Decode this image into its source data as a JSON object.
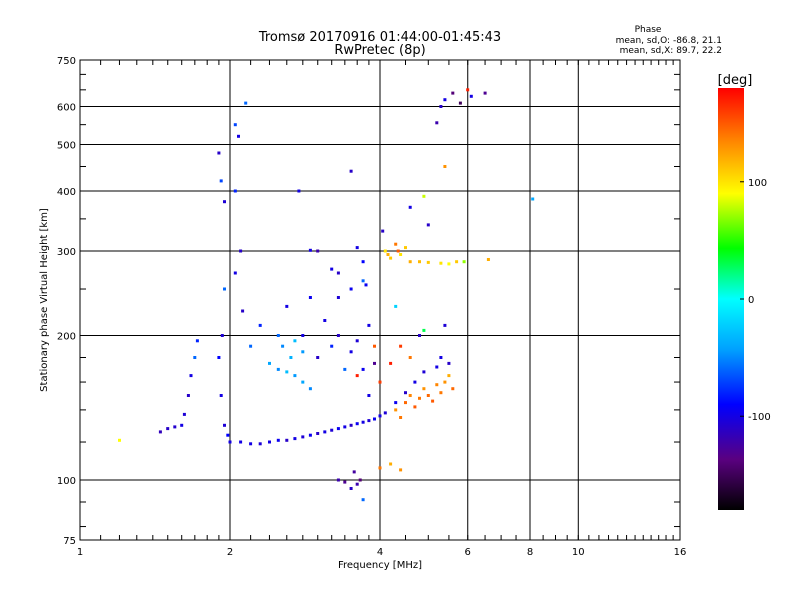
{
  "chart_data": {
    "type": "scatter",
    "title": "Tromsø 20170916 01:44:00-01:45:43",
    "subtitle": "RwPretec (8p)",
    "xlabel": "Frequency [MHz]",
    "ylabel": "Stationary phase Virtual Height [km]",
    "x_scale": "log2",
    "y_scale": "log",
    "xlim": [
      1,
      16
    ],
    "ylim": [
      75,
      750
    ],
    "x_ticks": [
      1,
      2,
      4,
      6,
      8,
      10,
      16
    ],
    "y_ticks": [
      75,
      100,
      200,
      300,
      400,
      500,
      600,
      750
    ],
    "grid": true,
    "phase_info": {
      "title": "Phase",
      "line_o": "mean, sd,O: -86.8, 21.1",
      "line_x": "mean, sd,X:  89.7, 22.2"
    },
    "colorbar": {
      "label": "[deg]",
      "range": [
        -180,
        180
      ],
      "ticks": [
        100,
        0,
        -100
      ]
    },
    "series": [
      {
        "values": [
          [
            1.2,
            121,
            90
          ],
          [
            1.45,
            126,
            -115
          ],
          [
            1.5,
            128,
            -110
          ],
          [
            1.55,
            129,
            -108
          ],
          [
            1.6,
            130,
            -100
          ],
          [
            1.62,
            137,
            -105
          ],
          [
            1.65,
            150,
            -110
          ],
          [
            1.67,
            165,
            -100
          ],
          [
            1.7,
            180,
            -60
          ],
          [
            1.72,
            195,
            -80
          ],
          [
            1.9,
            480,
            -110
          ],
          [
            1.92,
            420,
            -70
          ],
          [
            1.95,
            380,
            -105
          ],
          [
            1.95,
            250,
            -60
          ],
          [
            1.93,
            200,
            -105
          ],
          [
            1.9,
            180,
            -90
          ],
          [
            1.92,
            150,
            -100
          ],
          [
            1.95,
            130,
            -105
          ],
          [
            1.98,
            124,
            -90
          ],
          [
            2.0,
            120,
            -100
          ],
          [
            2.05,
            550,
            -70
          ],
          [
            2.08,
            520,
            -100
          ],
          [
            2.15,
            610,
            -60
          ],
          [
            2.05,
            400,
            -80
          ],
          [
            2.1,
            300,
            -110
          ],
          [
            2.05,
            270,
            -100
          ],
          [
            2.12,
            225,
            -110
          ],
          [
            2.2,
            190,
            -60
          ],
          [
            2.1,
            120,
            -100
          ],
          [
            2.2,
            119,
            -100
          ],
          [
            2.3,
            119,
            -105
          ],
          [
            2.4,
            120,
            -100
          ],
          [
            2.5,
            121,
            -95
          ],
          [
            2.6,
            121,
            -110
          ],
          [
            2.7,
            122,
            -100
          ],
          [
            2.8,
            123,
            -105
          ],
          [
            2.9,
            124,
            -95
          ],
          [
            3.0,
            125,
            -110
          ],
          [
            3.1,
            126,
            -100
          ],
          [
            3.2,
            127,
            -105
          ],
          [
            3.3,
            128,
            -95
          ],
          [
            3.4,
            129,
            -100
          ],
          [
            3.5,
            130,
            -110
          ],
          [
            3.6,
            131,
            -95
          ],
          [
            3.7,
            132,
            -100
          ],
          [
            3.8,
            133,
            -105
          ],
          [
            3.9,
            134,
            -95
          ],
          [
            4.0,
            136,
            -100
          ],
          [
            4.1,
            138,
            -105
          ],
          [
            4.3,
            145,
            -95
          ],
          [
            4.5,
            152,
            -110
          ],
          [
            4.7,
            160,
            -100
          ],
          [
            4.9,
            168,
            -105
          ],
          [
            5.2,
            172,
            -100
          ],
          [
            5.5,
            175,
            -110
          ],
          [
            2.4,
            175,
            -40
          ],
          [
            2.5,
            170,
            -50
          ],
          [
            2.6,
            168,
            -30
          ],
          [
            2.7,
            165,
            -45
          ],
          [
            2.8,
            160,
            -40
          ],
          [
            2.9,
            155,
            -50
          ],
          [
            2.65,
            180,
            -35
          ],
          [
            2.55,
            190,
            -50
          ],
          [
            2.7,
            195,
            -30
          ],
          [
            2.8,
            185,
            -45
          ],
          [
            2.5,
            200,
            -60
          ],
          [
            2.3,
            210,
            -80
          ],
          [
            2.6,
            230,
            -100
          ],
          [
            2.9,
            240,
            -95
          ],
          [
            3.1,
            215,
            -100
          ],
          [
            3.3,
            200,
            -110
          ],
          [
            3.5,
            185,
            -100
          ],
          [
            3.7,
            170,
            -95
          ],
          [
            3.4,
            170,
            -60
          ],
          [
            3.6,
            195,
            -105
          ],
          [
            3.8,
            210,
            -100
          ],
          [
            3.2,
            190,
            -80
          ],
          [
            3.0,
            180,
            -110
          ],
          [
            2.8,
            200,
            -100
          ],
          [
            3.3,
            240,
            -105
          ],
          [
            3.5,
            250,
            -95
          ],
          [
            3.2,
            275,
            -100
          ],
          [
            3.3,
            270,
            -110
          ],
          [
            3.6,
            305,
            -100
          ],
          [
            3.75,
            255,
            -95
          ],
          [
            3.5,
            440,
            -110
          ],
          [
            3.7,
            260,
            -60
          ],
          [
            3.7,
            285,
            -90
          ],
          [
            3.0,
            300,
            -120
          ],
          [
            2.9,
            301,
            -100
          ],
          [
            2.75,
            400,
            -100
          ],
          [
            3.3,
            100,
            -120
          ],
          [
            3.4,
            99,
            -130
          ],
          [
            3.5,
            96,
            -110
          ],
          [
            3.6,
            98,
            -120
          ],
          [
            3.7,
            91,
            -60
          ],
          [
            3.55,
            104,
            -125
          ],
          [
            3.65,
            100,
            -140
          ],
          [
            4.0,
            106,
            140
          ],
          [
            4.2,
            108,
            120
          ],
          [
            4.4,
            105,
            130
          ],
          [
            4.05,
            330,
            -110
          ],
          [
            4.1,
            300,
            100
          ],
          [
            4.15,
            295,
            120
          ],
          [
            4.2,
            290,
            110
          ],
          [
            4.3,
            310,
            140
          ],
          [
            4.35,
            300,
            150
          ],
          [
            4.4,
            295,
            100
          ],
          [
            4.5,
            305,
            110
          ],
          [
            4.6,
            285,
            120
          ],
          [
            4.8,
            285,
            115
          ],
          [
            5.0,
            284,
            110
          ],
          [
            5.3,
            283,
            100
          ],
          [
            5.5,
            282,
            90
          ],
          [
            5.7,
            285,
            110
          ],
          [
            5.9,
            285,
            70
          ],
          [
            6.6,
            288,
            120
          ],
          [
            4.3,
            140,
            130
          ],
          [
            4.4,
            135,
            140
          ],
          [
            4.5,
            145,
            145
          ],
          [
            4.6,
            150,
            135
          ],
          [
            4.7,
            142,
            150
          ],
          [
            4.8,
            148,
            140
          ],
          [
            4.9,
            155,
            130
          ],
          [
            5.0,
            150,
            145
          ],
          [
            5.1,
            146,
            150
          ],
          [
            5.2,
            158,
            135
          ],
          [
            5.3,
            152,
            140
          ],
          [
            5.4,
            160,
            130
          ],
          [
            5.5,
            165,
            120
          ],
          [
            5.6,
            155,
            145
          ],
          [
            4.0,
            160,
            160
          ],
          [
            4.2,
            175,
            170
          ],
          [
            4.4,
            190,
            160
          ],
          [
            4.6,
            180,
            140
          ],
          [
            4.9,
            205,
            30
          ],
          [
            4.3,
            230,
            -20
          ],
          [
            4.6,
            370,
            -100
          ],
          [
            5.0,
            340,
            -110
          ],
          [
            4.9,
            390,
            80
          ],
          [
            5.4,
            450,
            130
          ],
          [
            5.2,
            555,
            -120
          ],
          [
            5.3,
            600,
            -110
          ],
          [
            5.4,
            620,
            -100
          ],
          [
            5.6,
            640,
            -140
          ],
          [
            5.8,
            610,
            -150
          ],
          [
            6.0,
            650,
            170
          ],
          [
            6.1,
            630,
            -100
          ],
          [
            6.5,
            640,
            -130
          ],
          [
            8.1,
            385,
            -40
          ],
          [
            5.4,
            210,
            -105
          ],
          [
            5.3,
            180,
            -100
          ],
          [
            4.8,
            200,
            -110
          ],
          [
            3.9,
            175,
            -130
          ],
          [
            3.8,
            150,
            -100
          ],
          [
            3.6,
            165,
            170
          ],
          [
            3.9,
            190,
            150
          ]
        ]
      }
    ]
  }
}
